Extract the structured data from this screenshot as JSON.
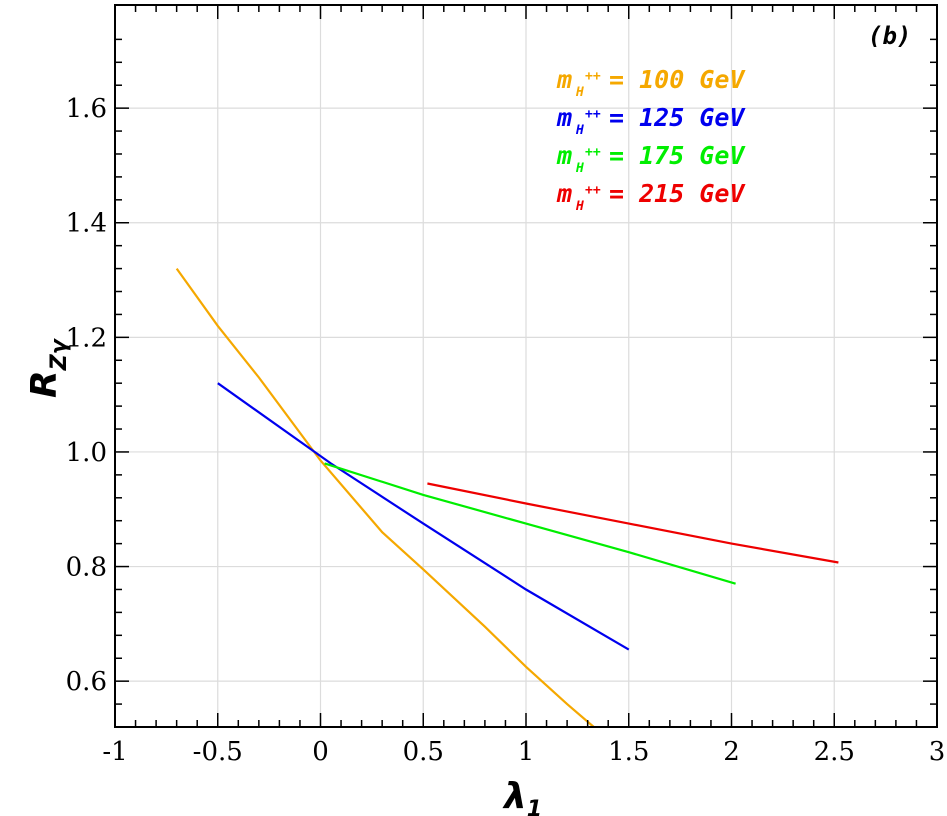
{
  "chart_data": {
    "type": "line",
    "panel_label": "(b)",
    "xlabel": {
      "symbol": "λ",
      "sub": "1"
    },
    "ylabel": {
      "symbol": "R",
      "sub": "Zγ"
    },
    "xlim": [
      -1,
      3
    ],
    "ylim": [
      0.52,
      1.78
    ],
    "xticks": [
      -1,
      -0.5,
      0,
      0.5,
      1,
      1.5,
      2,
      2.5,
      3
    ],
    "xtick_labels": [
      "-1",
      "-0.5",
      "0",
      "0.5",
      "1",
      "1.5",
      "2",
      "2.5",
      "3"
    ],
    "yticks": [
      0.6,
      0.8,
      1.0,
      1.2,
      1.4,
      1.6
    ],
    "ytick_labels": [
      "0.6",
      "0.8",
      "1.0",
      "1.2",
      "1.4",
      "1.6"
    ],
    "grid": true,
    "legend_position": "top-right",
    "series": [
      {
        "name": "100",
        "legend": {
          "m": "m",
          "sub": "H",
          "sup": "++",
          "rest": " = 100 GeV"
        },
        "color": "#f5a800",
        "x": [
          -0.7,
          -0.5,
          -0.3,
          0.0,
          0.3,
          0.5,
          0.8,
          1.0,
          1.2,
          1.33
        ],
        "y": [
          1.32,
          1.22,
          1.13,
          0.985,
          0.86,
          0.795,
          0.695,
          0.625,
          0.56,
          0.52
        ]
      },
      {
        "name": "125",
        "legend": {
          "m": "m",
          "sub": "H",
          "sup": "++",
          "rest": " = 125 GeV"
        },
        "color": "#0000ee",
        "x": [
          -0.5,
          0.05,
          0.5,
          1.0,
          1.5
        ],
        "y": [
          1.12,
          0.98,
          0.875,
          0.76,
          0.655
        ]
      },
      {
        "name": "175",
        "legend": {
          "m": "m",
          "sub": "H",
          "sup": "++",
          "rest": " = 175 GeV"
        },
        "color": "#00ee00",
        "x": [
          0.02,
          0.5,
          1.0,
          1.5,
          2.02
        ],
        "y": [
          0.98,
          0.925,
          0.875,
          0.825,
          0.77
        ]
      },
      {
        "name": "215",
        "legend": {
          "m": "m",
          "sub": "H",
          "sup": "++",
          "rest": " = 215 GeV"
        },
        "color": "#ee0000",
        "x": [
          0.52,
          1.0,
          1.5,
          2.0,
          2.52
        ],
        "y": [
          0.945,
          0.91,
          0.875,
          0.84,
          0.807
        ]
      }
    ]
  }
}
